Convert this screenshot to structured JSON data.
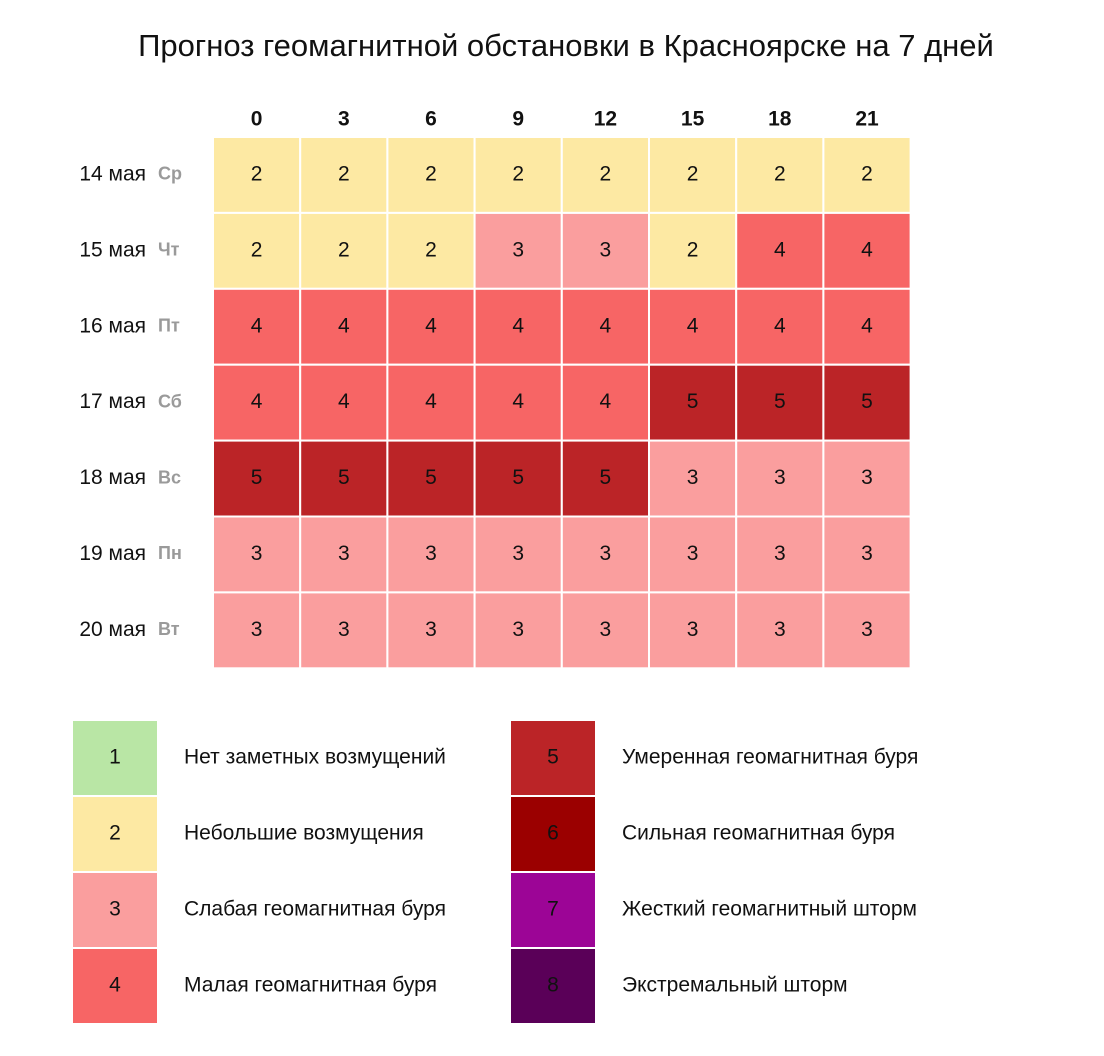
{
  "chart_data": {
    "type": "heatmap",
    "title": "Прогноз геомагнитной обстановки в Красноярске на 7 дней",
    "x": [
      0,
      3,
      6,
      9,
      12,
      15,
      18,
      21
    ],
    "y": [
      "14 мая",
      "15 мая",
      "16 мая",
      "17 мая",
      "18 мая",
      "19 мая",
      "20 мая"
    ],
    "weekdays": [
      "Ср",
      "Чт",
      "Пт",
      "Сб",
      "Вс",
      "Пн",
      "Вт"
    ],
    "values": [
      [
        2,
        2,
        2,
        2,
        2,
        2,
        2,
        2
      ],
      [
        2,
        2,
        2,
        3,
        3,
        2,
        4,
        4
      ],
      [
        4,
        4,
        4,
        4,
        4,
        4,
        4,
        4
      ],
      [
        4,
        4,
        4,
        4,
        4,
        5,
        5,
        5
      ],
      [
        5,
        5,
        5,
        5,
        5,
        3,
        3,
        3
      ],
      [
        3,
        3,
        3,
        3,
        3,
        3,
        3,
        3
      ],
      [
        3,
        3,
        3,
        3,
        3,
        3,
        3,
        3
      ]
    ],
    "legend": [
      {
        "value": 1,
        "label": "Нет заметных возмущений",
        "color": "#b9e6a5"
      },
      {
        "value": 2,
        "label": "Небольшие возмущения",
        "color": "#fde9a3"
      },
      {
        "value": 3,
        "label": "Слабая геомагнитная буря",
        "color": "#fa9e9e"
      },
      {
        "value": 4,
        "label": "Малая геомагнитная буря",
        "color": "#f76565"
      },
      {
        "value": 5,
        "label": "Умеренная геомагнитная буря",
        "color": "#bb2427"
      },
      {
        "value": 6,
        "label": "Сильная геомагнитная буря",
        "color": "#9b0000"
      },
      {
        "value": 7,
        "label": "Жесткий геомагнитный шторм",
        "color": "#9c0596"
      },
      {
        "value": 8,
        "label": "Экстремальный шторм",
        "color": "#5a0058"
      }
    ]
  }
}
